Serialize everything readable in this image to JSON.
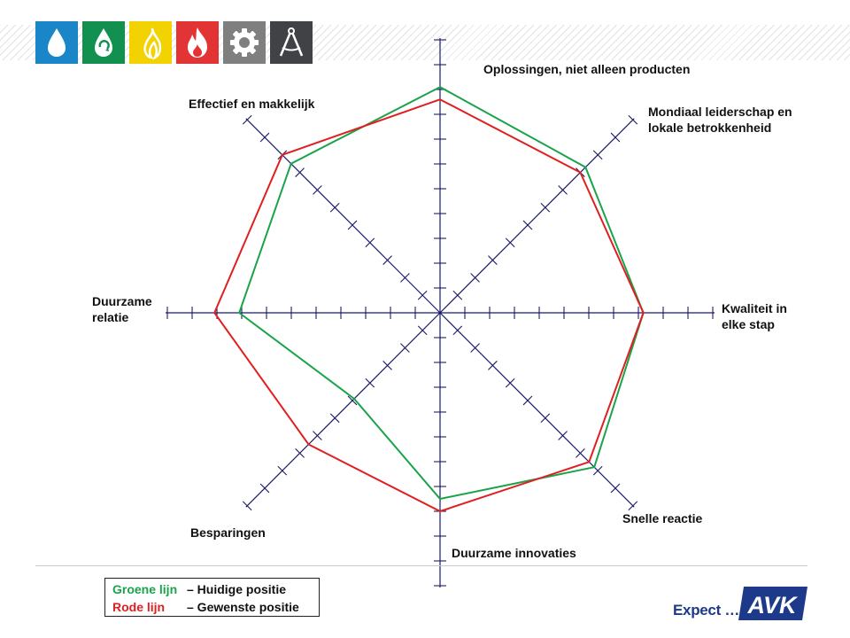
{
  "header": {
    "icons": [
      {
        "name": "water-drop-icon",
        "color": "#1a86c8"
      },
      {
        "name": "recycle-icon",
        "color": "#129050"
      },
      {
        "name": "gas-flame-icon",
        "color": "#f2d200"
      },
      {
        "name": "fire-icon",
        "color": "#e23434"
      },
      {
        "name": "gear-icon",
        "color": "#7f7f7f"
      },
      {
        "name": "compass-icon",
        "color": "#404246"
      }
    ]
  },
  "chart_data": {
    "type": "radar",
    "axes": [
      "Oplossingen, niet alleen producten",
      "Mondiaal leiderschap en lokale betrokkenheid",
      "Kwaliteit in elke stap",
      "Snelle reactie",
      "Duurzame innovaties",
      "Besparingen",
      "Duurzame relatie",
      "Effectief en makkelijk"
    ],
    "axis_labels": [
      {
        "lines": [
          "Oplossingen, niet alleen producten"
        ]
      },
      {
        "lines": [
          "Mondiaal leiderschap en",
          "lokale betrokkenheid"
        ]
      },
      {
        "lines": [
          "Kwaliteit in",
          "elke stap"
        ]
      },
      {
        "lines": [
          "Snelle reactie"
        ]
      },
      {
        "lines": [
          "Duurzame innovaties"
        ]
      },
      {
        "lines": [
          "Besparingen"
        ]
      },
      {
        "lines": [
          "Duurzame",
          "relatie"
        ]
      },
      {
        "lines": [
          "Effectief en makkelijk"
        ]
      }
    ],
    "range": [
      0,
      10
    ],
    "ticks_per_axis": 10,
    "series": [
      {
        "name": "Groene lijn",
        "color": "#1aa34a",
        "values": [
          9.1,
          8.3,
          8.2,
          8.8,
          7.5,
          4.9,
          8.1,
          8.5
        ]
      },
      {
        "name": "Rode lijn",
        "color": "#e02020",
        "values": [
          8.6,
          8.0,
          8.2,
          8.5,
          8.0,
          7.5,
          9.1,
          9.0
        ]
      }
    ]
  },
  "legend": {
    "rows": [
      {
        "name": "Groene lijn",
        "desc": "–  Huidige positie",
        "color": "#1aa34a"
      },
      {
        "name": "Rode lijn",
        "desc": "–  Gewenste positie",
        "color": "#e02020"
      }
    ]
  },
  "brand": {
    "tagline": "Expect …",
    "logo_text": "AVK",
    "color": "#1d3a8a"
  }
}
